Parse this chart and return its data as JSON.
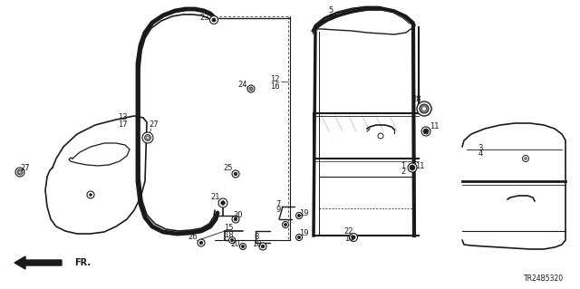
{
  "background_color": "#ffffff",
  "diagram_code": "TR24B5320",
  "line_color": "#1a1a1a",
  "fig_width": 6.4,
  "fig_height": 3.19,
  "label_fontsize": 6.0
}
